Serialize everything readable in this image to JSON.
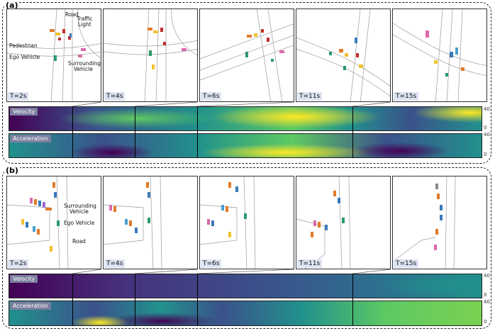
{
  "panel_a": {
    "label": "(a)",
    "frames": [
      {
        "time": "T=2s"
      },
      {
        "time": "T=4s"
      },
      {
        "time": "T=6s"
      },
      {
        "time": "T=11s"
      },
      {
        "time": "T=15s"
      }
    ],
    "annotations": {
      "road": "Road",
      "traffic_light_1": "Traffic",
      "traffic_light_2": "Light",
      "pedestrian": "Pedestrian",
      "ego": "Ego Vehicle",
      "surrounding_1": "Surrounding",
      "surrounding_2": "Vehicle"
    },
    "velocity_label": "Velocity",
    "acceleration_label": "Acceleration",
    "velocity_ticks": [
      "40",
      "0"
    ],
    "acceleration_ticks": [
      "40",
      "0"
    ]
  },
  "panel_b": {
    "label": "(b)",
    "frames": [
      {
        "time": "T=2s"
      },
      {
        "time": "T=4s"
      },
      {
        "time": "T=6s"
      },
      {
        "time": "T=11s"
      },
      {
        "time": "T=15s"
      }
    ],
    "annotations": {
      "surrounding_1": "Surrounding",
      "surrounding_2": "Vehicle",
      "ego": "Ego Vehicle",
      "road": "Road"
    },
    "velocity_label": "Velocity",
    "acceleration_label": "Acceleration",
    "velocity_ticks": [
      "40",
      "0"
    ],
    "acceleration_ticks": [
      "40",
      "0"
    ]
  },
  "colors": {
    "viridis_dark": "#440154",
    "viridis_blue": "#3b528b",
    "viridis_teal": "#21918c",
    "viridis_green": "#5ec962",
    "viridis_yellow": "#fde725"
  }
}
